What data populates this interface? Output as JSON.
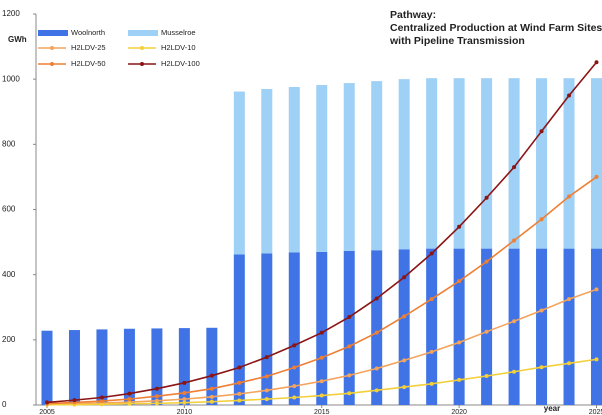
{
  "chart_data": {
    "type": "bar",
    "stacked": true,
    "annotation": [
      "Pathway:",
      "Centralized Production at Wind Farm Sites",
      "with Pipeline Transmission"
    ],
    "y_label": "GWh",
    "x_label": "year",
    "x": [
      2005,
      2006,
      2007,
      2008,
      2009,
      2010,
      2011,
      2012,
      2013,
      2014,
      2015,
      2016,
      2017,
      2018,
      2019,
      2020,
      2021,
      2022,
      2023,
      2024,
      2025
    ],
    "xlim": [
      2004.6,
      2025.2
    ],
    "xticks": [
      2005,
      2010,
      2015,
      2020,
      2025
    ],
    "ylim": [
      0,
      1200
    ],
    "yticks": [
      0,
      200,
      400,
      600,
      800,
      1000,
      1200
    ],
    "grid": false,
    "legend": "upper left",
    "series": [
      {
        "name": "Woolnorth",
        "type": "bar",
        "color": "#3f73e6",
        "values": [
          228,
          230,
          232,
          234,
          235,
          236,
          237,
          462,
          465,
          468,
          470,
          473,
          475,
          478,
          480,
          480,
          480,
          480,
          480,
          480,
          480
        ]
      },
      {
        "name": "Musselroe",
        "type": "bar",
        "color": "#9fd0f5",
        "values": [
          0,
          0,
          0,
          0,
          0,
          0,
          0,
          500,
          505,
          508,
          512,
          515,
          519,
          522,
          523,
          523,
          523,
          523,
          523,
          523,
          523
        ]
      },
      {
        "name": "H2LDV-25",
        "type": "line",
        "color": "#f4a45c",
        "values": [
          2,
          4,
          6,
          9,
          13,
          18,
          25,
          34,
          45,
          58,
          73,
          91,
          112,
          137,
          163,
          192,
          225,
          257,
          290,
          325,
          355
        ]
      },
      {
        "name": "H2LDV-10",
        "type": "line",
        "color": "#f3d03a",
        "values": [
          1,
          1,
          2,
          4,
          5,
          7,
          10,
          14,
          18,
          23,
          29,
          36,
          45,
          55,
          65,
          77,
          89,
          102,
          116,
          128,
          140
        ]
      },
      {
        "name": "H2LDV-50",
        "type": "line",
        "color": "#ef7f33",
        "values": [
          4,
          8,
          12,
          18,
          27,
          37,
          50,
          68,
          88,
          115,
          145,
          180,
          222,
          272,
          325,
          380,
          440,
          505,
          570,
          640,
          700
        ]
      },
      {
        "name": "H2LDV-100",
        "type": "line",
        "color": "#8b1414",
        "values": [
          8,
          15,
          23,
          35,
          50,
          68,
          90,
          115,
          147,
          183,
          222,
          270,
          327,
          392,
          465,
          547,
          636,
          730,
          840,
          950,
          1052
        ]
      }
    ]
  }
}
